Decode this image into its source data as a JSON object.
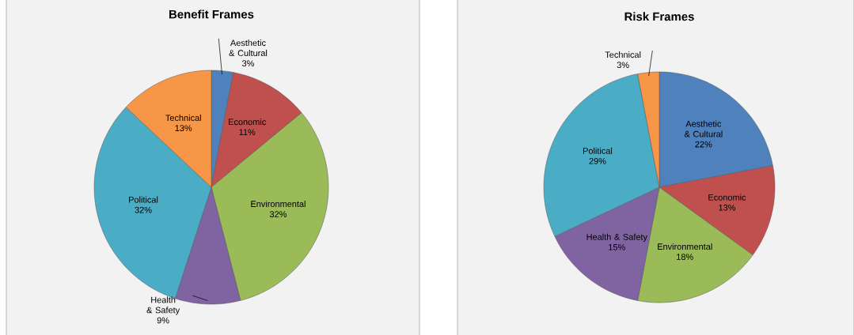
{
  "chart_data": [
    {
      "type": "pie",
      "title": "Benefit Frames",
      "categories": [
        "Aesthetic & Cultural",
        "Economic",
        "Environmental",
        "Health & Safety",
        "Political",
        "Technical"
      ],
      "values": [
        3,
        11,
        32,
        9,
        32,
        13
      ],
      "value_labels": [
        "3%",
        "11%",
        "32%",
        "9%",
        "32%",
        "13%"
      ],
      "colors": [
        "#4f81bd",
        "#c0504d",
        "#9bbb59",
        "#8064a2",
        "#4bacc6",
        "#f79646"
      ]
    },
    {
      "type": "pie",
      "title": "Risk Frames",
      "categories": [
        "Aesthetic & Cultural",
        "Economic",
        "Environmental",
        "Health & Safety",
        "Political",
        "Technical"
      ],
      "values": [
        22,
        13,
        18,
        15,
        29,
        3
      ],
      "value_labels": [
        "22%",
        "13%",
        "18%",
        "15%",
        "29%",
        "3%"
      ],
      "colors": [
        "#4f81bd",
        "#c0504d",
        "#9bbb59",
        "#8064a2",
        "#4bacc6",
        "#f79646"
      ]
    }
  ]
}
